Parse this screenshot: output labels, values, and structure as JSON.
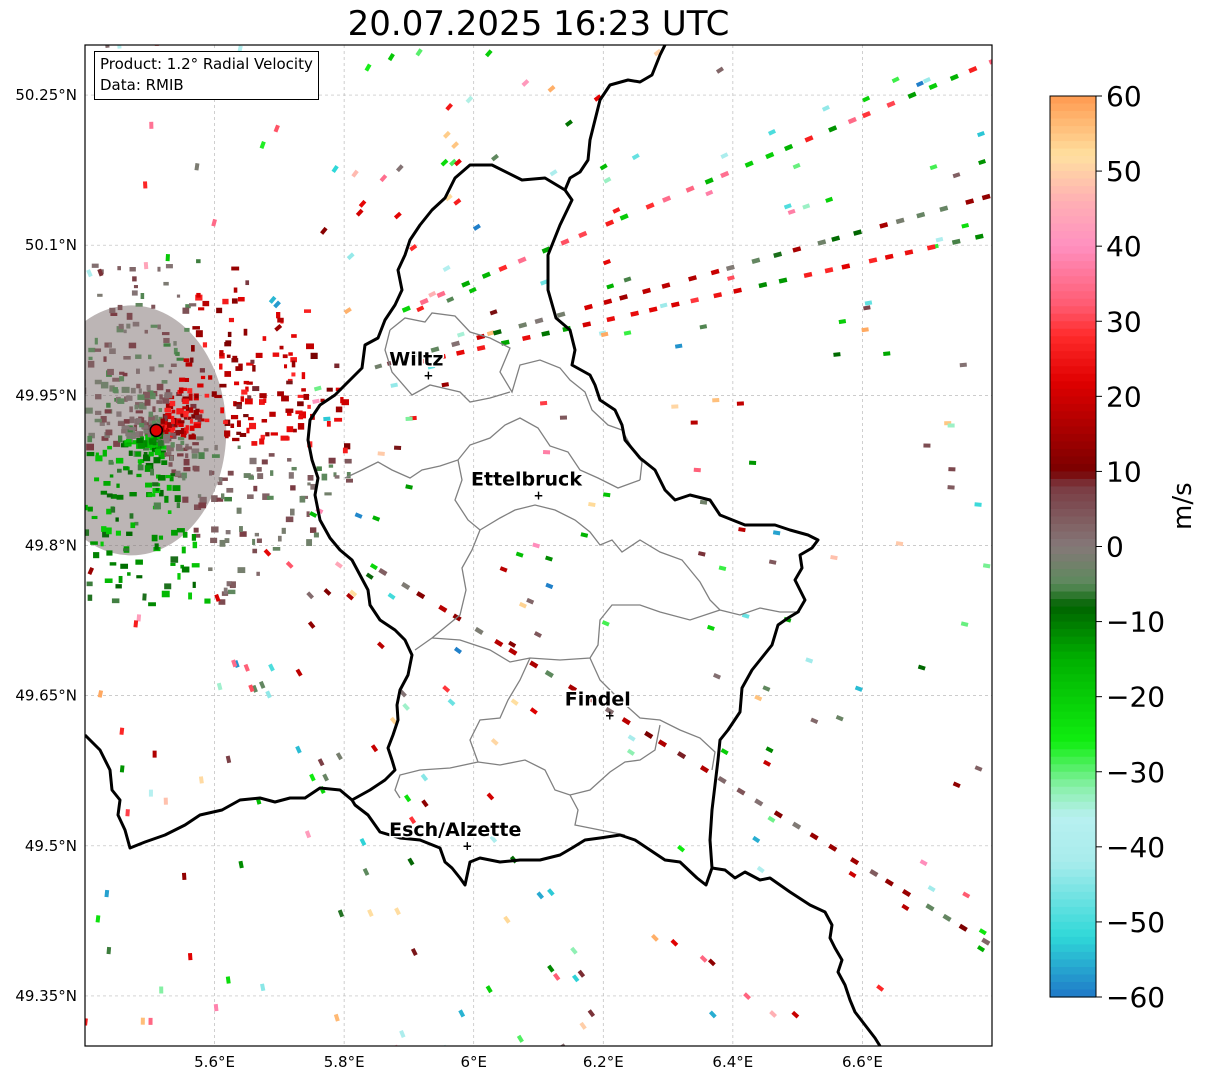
{
  "title": "20.07.2025 16:23 UTC",
  "info": {
    "product_line": "Product: 1.2° Radial Velocity",
    "data_line": "Data: RMIB"
  },
  "axes": {
    "lon_ticks": [
      {
        "value": 5.6,
        "label": "5.6°E"
      },
      {
        "value": 5.8,
        "label": "5.8°E"
      },
      {
        "value": 6.0,
        "label": "6°E"
      },
      {
        "value": 6.2,
        "label": "6.2°E"
      },
      {
        "value": 6.4,
        "label": "6.4°E"
      },
      {
        "value": 6.6,
        "label": "6.6°E"
      }
    ],
    "lat_ticks": [
      {
        "value": 50.25,
        "label": "50.25°N"
      },
      {
        "value": 50.1,
        "label": "50.1°N"
      },
      {
        "value": 49.95,
        "label": "49.95°N"
      },
      {
        "value": 49.8,
        "label": "49.8°N"
      },
      {
        "value": 49.65,
        "label": "49.65°N"
      },
      {
        "value": 49.5,
        "label": "49.5°N"
      },
      {
        "value": 49.35,
        "label": "49.35°N"
      }
    ],
    "lon_range": [
      5.4,
      6.8
    ],
    "lat_range": [
      49.3,
      50.3
    ],
    "grid": true
  },
  "cities": [
    {
      "name": "Wiltz",
      "lon": 5.93,
      "lat": 49.97
    },
    {
      "name": "Ettelbruck",
      "lon": 6.1,
      "lat": 49.85
    },
    {
      "name": "Findel",
      "lon": 6.21,
      "lat": 49.63
    },
    {
      "name": "Esch/Alzette",
      "lon": 5.99,
      "lat": 49.5
    }
  ],
  "radar_site": {
    "lon": 5.51,
    "lat": 49.915
  },
  "colorbar": {
    "label": "m/s",
    "min": -60,
    "max": 60,
    "ticks": [
      {
        "value": 60,
        "label": "60"
      },
      {
        "value": 50,
        "label": "50"
      },
      {
        "value": 40,
        "label": "40"
      },
      {
        "value": 30,
        "label": "30"
      },
      {
        "value": 20,
        "label": "20"
      },
      {
        "value": 10,
        "label": "10"
      },
      {
        "value": 0,
        "label": "0"
      },
      {
        "value": -10,
        "label": "−10"
      },
      {
        "value": -20,
        "label": "−20"
      },
      {
        "value": -30,
        "label": "−30"
      },
      {
        "value": -40,
        "label": "−40"
      },
      {
        "value": -50,
        "label": "−50"
      },
      {
        "value": -60,
        "label": "−60"
      }
    ]
  },
  "colors": {
    "border": "#000000",
    "canton": "#808080",
    "radar_site": "#e00000",
    "grid": "#bbbbbb"
  }
}
